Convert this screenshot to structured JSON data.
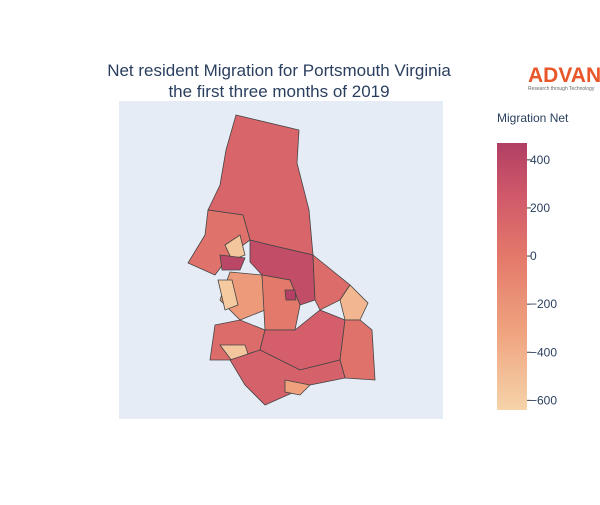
{
  "chart_data": {
    "type": "choropleth",
    "title": [
      "Net resident Migration for Portsmouth Virginia",
      "the first three months of 2019"
    ],
    "colorbar_title": "Migration Net",
    "values": [
      150,
      350,
      50,
      -550,
      400,
      100,
      -450,
      -250,
      -580,
      0,
      100,
      -550,
      200,
      50,
      180,
      -300,
      450
    ],
    "zlim": [
      -640,
      470
    ],
    "zticks": [
      {
        "value": -600,
        "label": "−600"
      },
      {
        "value": -400,
        "label": "−400"
      },
      {
        "value": -200,
        "label": "−200"
      },
      0,
      200,
      400
    ],
    "colorscale": [
      [
        0,
        "#f6d3a9"
      ],
      [
        0.3,
        "#efa27e"
      ],
      [
        0.58,
        "#e3786a"
      ],
      [
        0.8,
        "#d0596a"
      ],
      [
        1,
        "#b13f64"
      ]
    ]
  },
  "logo": {
    "text": "ADVAN",
    "tagline": "Research through Technology"
  }
}
